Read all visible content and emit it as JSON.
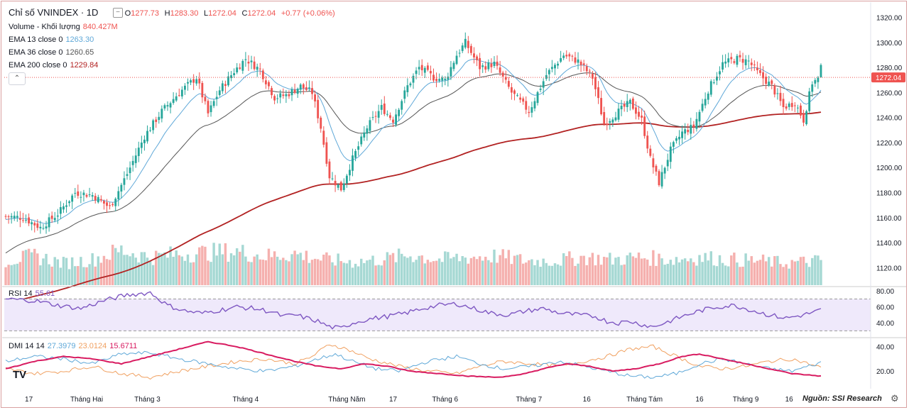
{
  "header": {
    "symbol": "Chỉ số VNINDEX · 1D",
    "open_label": "O",
    "open": "1277.73",
    "high_label": "H",
    "high": "1283.30",
    "low_label": "L",
    "low": "1272.04",
    "close_label": "C",
    "close": "1272.04",
    "change": "+0.77 (+0.06%)",
    "collapse_icon": "chevron-up-icon",
    "minus_icon": "minus-icon"
  },
  "legend": {
    "volume_label": "Volume - Khối lượng",
    "volume_value": "840.427M",
    "ema13_label": "EMA 13 close 0",
    "ema13_value": "1263.30",
    "ema36_label": "EMA 36 close 0",
    "ema36_value": "1260.65",
    "ema200_label": "EMA 200 close 0",
    "ema200_value": "1229.84",
    "rsi_label": "RSI 14",
    "rsi_value": "55.61",
    "dmi_label": "DMI 14 14",
    "dmi_plus": "27.3979",
    "dmi_minus": "23.0124",
    "dmi_adx": "15.6711"
  },
  "colors": {
    "up": "#26a69a",
    "down": "#ef5350",
    "ema13": "#5fa8d8",
    "ema36": "#555555",
    "ema200": "#b22222",
    "rsi": "#7e57c2",
    "dmi_plus": "#5fa8d8",
    "dmi_minus": "#f0a060",
    "dmi_adx": "#d81b60",
    "last_price_tag": "#ef5350"
  },
  "footer": {
    "source": "Nguồn: SSI Research",
    "logo": "TV",
    "settings_icon": "gear-icon"
  },
  "chart_data": {
    "type": "candlestick",
    "last_price": "1272.04",
    "price_axis": {
      "ticks": [
        1120,
        1140,
        1160,
        1180,
        1200,
        1220,
        1240,
        1260,
        1280,
        1300,
        1320
      ],
      "ylim": [
        1106,
        1326
      ]
    },
    "rsi_axis": {
      "ticks": [
        40,
        60,
        80
      ],
      "band": [
        30,
        70
      ],
      "ylim": [
        25,
        82
      ]
    },
    "dmi_axis": {
      "ticks": [
        20,
        40
      ],
      "ylim": [
        8,
        45
      ]
    },
    "x_ticks": [
      "17",
      "Tháng Hai",
      "Tháng 3",
      "Tháng 4",
      "Tháng Năm",
      "17",
      "Tháng 6",
      "Tháng 7",
      "16",
      "Tháng Tám",
      "16",
      "Tháng 9",
      "16"
    ],
    "x_tick_index": [
      8,
      28,
      49,
      83,
      118,
      134,
      152,
      181,
      201,
      221,
      240,
      256,
      271
    ],
    "close_path": [
      [
        0,
        1161
      ],
      [
        6,
        1160
      ],
      [
        12,
        1152
      ],
      [
        18,
        1163
      ],
      [
        24,
        1180
      ],
      [
        30,
        1178
      ],
      [
        36,
        1168
      ],
      [
        42,
        1195
      ],
      [
        48,
        1225
      ],
      [
        54,
        1245
      ],
      [
        60,
        1260
      ],
      [
        66,
        1272
      ],
      [
        70,
        1243
      ],
      [
        74,
        1262
      ],
      [
        79,
        1277
      ],
      [
        83,
        1287
      ],
      [
        88,
        1278
      ],
      [
        93,
        1256
      ],
      [
        97,
        1258
      ],
      [
        102,
        1265
      ],
      [
        106,
        1260
      ],
      [
        109,
        1232
      ],
      [
        112,
        1193
      ],
      [
        116,
        1183
      ],
      [
        120,
        1207
      ],
      [
        125,
        1232
      ],
      [
        130,
        1248
      ],
      [
        134,
        1238
      ],
      [
        139,
        1265
      ],
      [
        143,
        1280
      ],
      [
        148,
        1272
      ],
      [
        152,
        1270
      ],
      [
        156,
        1290
      ],
      [
        159,
        1300
      ],
      [
        164,
        1280
      ],
      [
        169,
        1283
      ],
      [
        175,
        1260
      ],
      [
        181,
        1245
      ],
      [
        187,
        1274
      ],
      [
        193,
        1290
      ],
      [
        198,
        1285
      ],
      [
        203,
        1272
      ],
      [
        207,
        1235
      ],
      [
        211,
        1243
      ],
      [
        216,
        1252
      ],
      [
        220,
        1238
      ],
      [
        223,
        1207
      ],
      [
        226,
        1188
      ],
      [
        230,
        1214
      ],
      [
        234,
        1228
      ],
      [
        238,
        1233
      ],
      [
        243,
        1262
      ],
      [
        248,
        1283
      ],
      [
        253,
        1287
      ],
      [
        257,
        1285
      ],
      [
        260,
        1276
      ],
      [
        265,
        1265
      ],
      [
        269,
        1248
      ],
      [
        273,
        1252
      ],
      [
        276,
        1238
      ],
      [
        279,
        1268
      ],
      [
        282,
        1272
      ]
    ],
    "volume_path": [
      [
        0,
        21
      ],
      [
        10,
        25
      ],
      [
        20,
        19
      ],
      [
        30,
        22
      ],
      [
        40,
        30
      ],
      [
        50,
        24
      ],
      [
        60,
        27
      ],
      [
        70,
        28
      ],
      [
        80,
        29
      ],
      [
        90,
        25
      ],
      [
        100,
        27
      ],
      [
        110,
        22
      ],
      [
        120,
        20
      ],
      [
        130,
        22
      ],
      [
        140,
        26
      ],
      [
        150,
        22
      ],
      [
        160,
        24
      ],
      [
        170,
        25
      ],
      [
        180,
        21
      ],
      [
        190,
        21
      ],
      [
        200,
        24
      ],
      [
        210,
        22
      ],
      [
        220,
        24
      ],
      [
        230,
        22
      ],
      [
        240,
        24
      ],
      [
        250,
        22
      ],
      [
        260,
        21
      ],
      [
        270,
        19
      ],
      [
        282,
        21
      ]
    ],
    "rsi_path": [
      [
        0,
        70
      ],
      [
        10,
        68
      ],
      [
        18,
        62
      ],
      [
        26,
        58
      ],
      [
        34,
        68
      ],
      [
        42,
        75
      ],
      [
        50,
        78
      ],
      [
        56,
        62
      ],
      [
        62,
        55
      ],
      [
        68,
        52
      ],
      [
        74,
        56
      ],
      [
        80,
        60
      ],
      [
        86,
        58
      ],
      [
        92,
        54
      ],
      [
        96,
        48
      ],
      [
        100,
        50
      ],
      [
        104,
        46
      ],
      [
        108,
        42
      ],
      [
        112,
        35
      ],
      [
        116,
        33
      ],
      [
        120,
        40
      ],
      [
        126,
        45
      ],
      [
        132,
        48
      ],
      [
        138,
        52
      ],
      [
        144,
        58
      ],
      [
        150,
        62
      ],
      [
        156,
        64
      ],
      [
        162,
        58
      ],
      [
        168,
        52
      ],
      [
        174,
        50
      ],
      [
        180,
        55
      ],
      [
        186,
        58
      ],
      [
        192,
        52
      ],
      [
        198,
        50
      ],
      [
        204,
        48
      ],
      [
        208,
        42
      ],
      [
        212,
        40
      ],
      [
        216,
        42
      ],
      [
        220,
        38
      ],
      [
        224,
        35
      ],
      [
        228,
        40
      ],
      [
        234,
        48
      ],
      [
        240,
        55
      ],
      [
        246,
        60
      ],
      [
        252,
        62
      ],
      [
        258,
        56
      ],
      [
        264,
        50
      ],
      [
        270,
        46
      ],
      [
        276,
        50
      ],
      [
        282,
        56
      ]
    ],
    "dmi_plus_path": [
      [
        0,
        28
      ],
      [
        10,
        32
      ],
      [
        20,
        30
      ],
      [
        30,
        26
      ],
      [
        40,
        34
      ],
      [
        50,
        35
      ],
      [
        60,
        30
      ],
      [
        70,
        26
      ],
      [
        80,
        22
      ],
      [
        90,
        20
      ],
      [
        100,
        24
      ],
      [
        108,
        30
      ],
      [
        114,
        34
      ],
      [
        120,
        28
      ],
      [
        128,
        22
      ],
      [
        136,
        20
      ],
      [
        146,
        28
      ],
      [
        156,
        32
      ],
      [
        164,
        26
      ],
      [
        172,
        22
      ],
      [
        182,
        24
      ],
      [
        192,
        28
      ],
      [
        200,
        24
      ],
      [
        208,
        20
      ],
      [
        216,
        16
      ],
      [
        224,
        15
      ],
      [
        232,
        18
      ],
      [
        240,
        26
      ],
      [
        248,
        30
      ],
      [
        256,
        26
      ],
      [
        264,
        22
      ],
      [
        272,
        20
      ],
      [
        282,
        27
      ]
    ],
    "dmi_minus_path": [
      [
        0,
        22
      ],
      [
        10,
        18
      ],
      [
        20,
        20
      ],
      [
        30,
        24
      ],
      [
        40,
        18
      ],
      [
        50,
        15
      ],
      [
        60,
        20
      ],
      [
        70,
        24
      ],
      [
        80,
        28
      ],
      [
        90,
        30
      ],
      [
        100,
        26
      ],
      [
        106,
        32
      ],
      [
        112,
        42
      ],
      [
        118,
        38
      ],
      [
        126,
        30
      ],
      [
        136,
        24
      ],
      [
        146,
        20
      ],
      [
        156,
        18
      ],
      [
        164,
        24
      ],
      [
        172,
        28
      ],
      [
        182,
        26
      ],
      [
        192,
        24
      ],
      [
        200,
        28
      ],
      [
        208,
        32
      ],
      [
        216,
        38
      ],
      [
        224,
        40
      ],
      [
        232,
        32
      ],
      [
        240,
        24
      ],
      [
        248,
        22
      ],
      [
        256,
        24
      ],
      [
        264,
        28
      ],
      [
        272,
        30
      ],
      [
        282,
        23
      ]
    ],
    "dmi_adx_path": [
      [
        0,
        22
      ],
      [
        10,
        28
      ],
      [
        20,
        32
      ],
      [
        30,
        30
      ],
      [
        40,
        26
      ],
      [
        50,
        32
      ],
      [
        60,
        38
      ],
      [
        70,
        44
      ],
      [
        80,
        40
      ],
      [
        90,
        34
      ],
      [
        100,
        28
      ],
      [
        108,
        24
      ],
      [
        116,
        22
      ],
      [
        124,
        26
      ],
      [
        132,
        24
      ],
      [
        140,
        20
      ],
      [
        150,
        18
      ],
      [
        160,
        16
      ],
      [
        170,
        15
      ],
      [
        178,
        17
      ],
      [
        186,
        22
      ],
      [
        194,
        26
      ],
      [
        202,
        24
      ],
      [
        210,
        20
      ],
      [
        218,
        22
      ],
      [
        226,
        26
      ],
      [
        234,
        32
      ],
      [
        240,
        34
      ],
      [
        248,
        30
      ],
      [
        256,
        26
      ],
      [
        264,
        22
      ],
      [
        272,
        18
      ],
      [
        282,
        16
      ]
    ]
  }
}
